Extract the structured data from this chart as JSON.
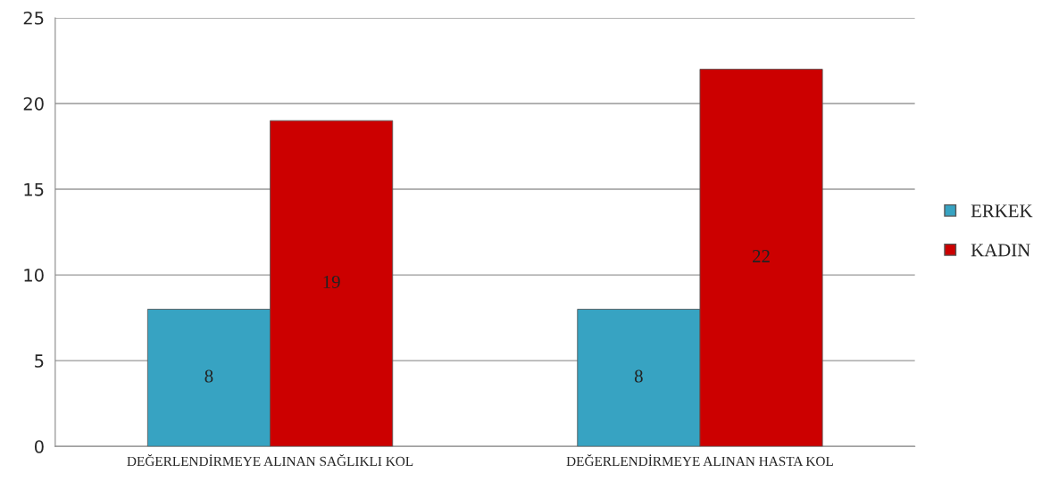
{
  "chart_data": {
    "type": "bar",
    "categories": [
      "DEĞERLENDİRMEYE ALINAN SAĞLIKLI KOL",
      "DEĞERLENDİRMEYE ALINAN HASTA KOL"
    ],
    "series": [
      {
        "name": "ERKEK",
        "color": "#37a3c2",
        "values": [
          8,
          8
        ]
      },
      {
        "name": "KADIN",
        "color": "#cc0000",
        "values": [
          19,
          22
        ]
      }
    ],
    "ylim": [
      0,
      25
    ],
    "yticks": [
      0,
      5,
      10,
      15,
      20,
      25
    ],
    "grid": "y",
    "legend": "right",
    "data_labels": true
  }
}
